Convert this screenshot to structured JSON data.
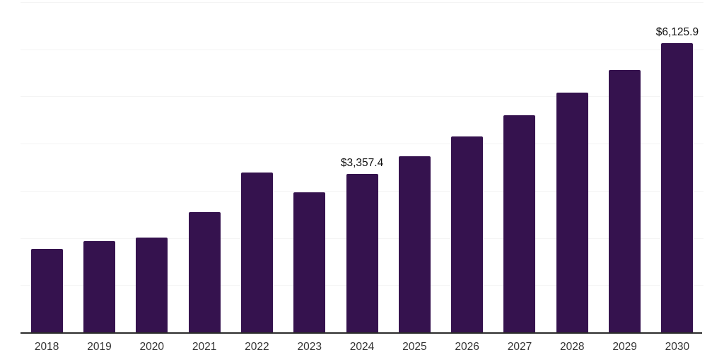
{
  "chart_data": {
    "type": "bar",
    "title": "",
    "xlabel": "",
    "ylabel": "",
    "categories": [
      "2018",
      "2019",
      "2020",
      "2021",
      "2022",
      "2023",
      "2024",
      "2025",
      "2026",
      "2027",
      "2028",
      "2029",
      "2030"
    ],
    "values": [
      1775,
      1940,
      2010,
      2550,
      3385,
      2965,
      3357.4,
      3740,
      4145,
      4605,
      5085,
      5560,
      6125.9
    ],
    "value_labels": [
      "",
      "",
      "",
      "",
      "",
      "",
      "$3,357.4",
      "",
      "",
      "",
      "",
      "",
      "$6,125.9"
    ],
    "ylim": [
      0,
      7000
    ],
    "y_gridline_step": 1000,
    "y_gridlines": [
      1000,
      2000,
      3000,
      4000,
      5000,
      6000,
      7000
    ],
    "y_tick_labels_visible": false,
    "grid": true,
    "legend": false,
    "colors": {
      "bar": "#35124e",
      "gridline": "#f4f4f4",
      "axis_line": "#2b2b2b",
      "x_tick_label": "#333333",
      "value_label": "#111111",
      "background": "#ffffff"
    }
  }
}
